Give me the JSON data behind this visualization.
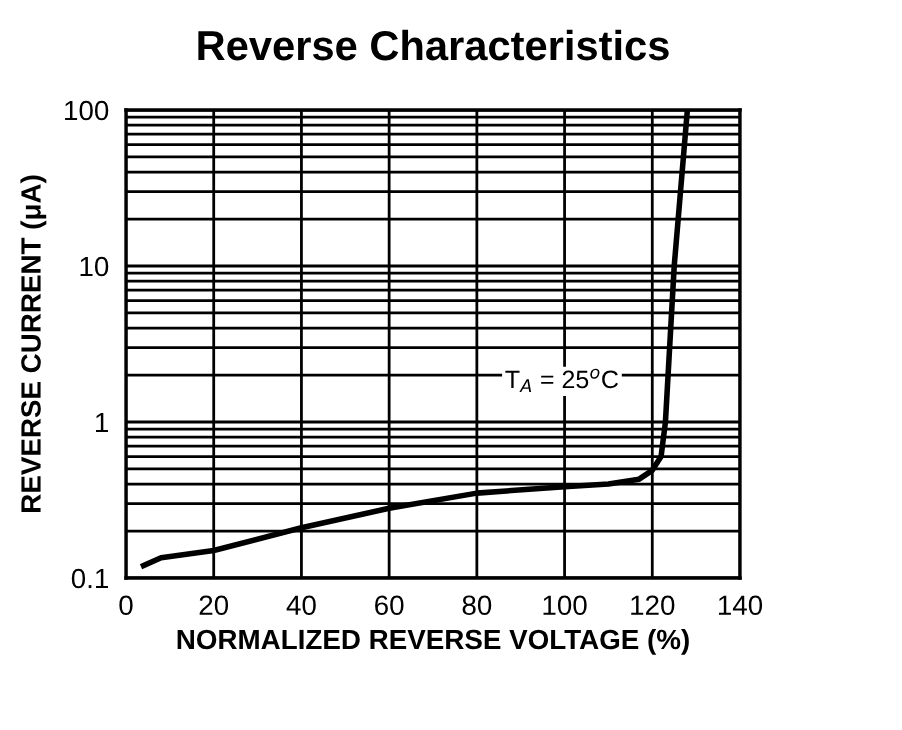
{
  "chart_data": {
    "type": "line",
    "title": "Reverse Characteristics",
    "xlabel": "NORMALIZED REVERSE VOLTAGE (%)",
    "ylabel": "REVERSE CURRENT (μA)",
    "x": [
      4,
      8,
      20,
      40,
      60,
      80,
      100,
      110,
      117,
      120,
      122,
      123,
      125,
      128
    ],
    "series": [
      {
        "color": "#000000",
        "values": [
          0.12,
          0.135,
          0.15,
          0.21,
          0.28,
          0.35,
          0.385,
          0.4,
          0.43,
          0.49,
          0.6,
          1.0,
          10,
          100
        ]
      }
    ],
    "xlim": [
      0,
      140
    ],
    "xticks": [
      0,
      20,
      40,
      60,
      80,
      100,
      120,
      140
    ],
    "ylim": [
      0.1,
      100
    ],
    "yticks": [
      0.1,
      1,
      10,
      100
    ],
    "log": "y",
    "grid": true,
    "legend": false,
    "marker": "none",
    "line_style": "solid",
    "annotations": [
      "T$_{A}$ = 25$^{o}$C"
    ]
  }
}
